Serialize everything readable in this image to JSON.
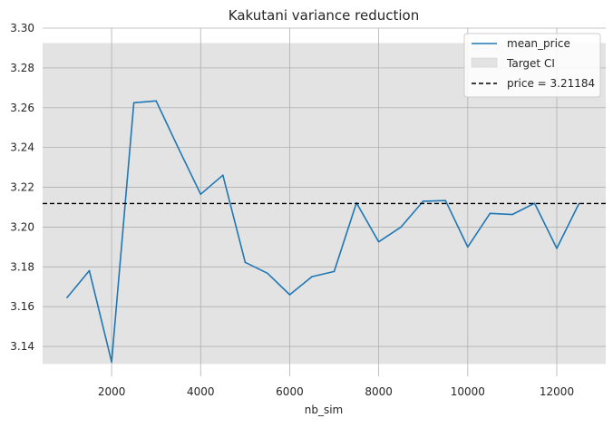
{
  "chart_data": {
    "type": "line",
    "title": "Kakutani variance reduction",
    "xlabel": "nb_sim",
    "ylabel": "",
    "xlim": [
      450,
      13100
    ],
    "ylim": [
      3.125,
      3.3
    ],
    "xticks": [
      2000,
      4000,
      6000,
      8000,
      10000,
      12000
    ],
    "yticks": [
      3.14,
      3.16,
      3.18,
      3.2,
      3.22,
      3.24,
      3.26,
      3.28,
      3.3
    ],
    "grid": true,
    "legend_position": "top-right",
    "series": [
      {
        "name": "mean_price",
        "color": "#1f77b4",
        "x": [
          1000,
          1500,
          2000,
          2500,
          3000,
          3500,
          4000,
          4500,
          5000,
          5500,
          6000,
          6500,
          7000,
          7500,
          8000,
          8500,
          9000,
          9500,
          10000,
          10500,
          11000,
          11500,
          12000,
          12500
        ],
        "y": [
          3.1646,
          3.1781,
          3.1322,
          3.2625,
          3.2634,
          3.2397,
          3.2165,
          3.2261,
          3.1823,
          3.1768,
          3.166,
          3.1751,
          3.1777,
          3.2122,
          3.1926,
          3.2,
          3.213,
          3.2133,
          3.19,
          3.2069,
          3.2063,
          3.212,
          3.1893,
          3.2118
        ]
      }
    ],
    "band": {
      "name": "Target CI",
      "lower": 3.1312,
      "upper": 3.2925,
      "color": "#e3e3e3"
    },
    "hline": {
      "name": "price = 3.21184",
      "value": 3.21184,
      "color": "#000000"
    }
  }
}
